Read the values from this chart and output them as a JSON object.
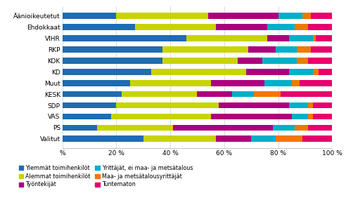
{
  "categories": [
    "Äänioikeutetut",
    "Ehdokkaat",
    "VIHR",
    "RKP",
    "KOK",
    "KD",
    "Muut",
    "KESK",
    "SDP",
    "VAS",
    "PS",
    "Valitut"
  ],
  "series": {
    "Ylemmät toimihenkilöt": [
      20,
      27,
      46,
      37,
      37,
      33,
      25,
      22,
      20,
      18,
      13,
      30
    ],
    "Alemmat toimihenkilöt": [
      34,
      30,
      30,
      32,
      28,
      35,
      30,
      28,
      38,
      37,
      28,
      27
    ],
    "Työntekijät": [
      26,
      19,
      8,
      10,
      9,
      16,
      20,
      13,
      26,
      30,
      37,
      13
    ],
    "Yrittäjät, ei maa- ja metsätalous": [
      9,
      10,
      9,
      8,
      13,
      9,
      10,
      8,
      7,
      6,
      8,
      9
    ],
    "Maa- ja metsätalousyrittäjät": [
      3,
      5,
      1,
      5,
      4,
      2,
      3,
      10,
      2,
      2,
      5,
      10
    ],
    "Tuntematon": [
      8,
      9,
      6,
      8,
      9,
      5,
      12,
      19,
      7,
      7,
      9,
      11
    ]
  },
  "colors": {
    "Ylemmät toimihenkilöt": "#1f6cb0",
    "Alemmat toimihenkilöt": "#c8d400",
    "Työntekijät": "#ad007c",
    "Yrittäjät, ei maa- ja metsätalous": "#00b0c8",
    "Maa- ja metsätalousyrittäjät": "#f07800",
    "Tuntematon": "#e8006c"
  },
  "xlim": [
    0,
    100
  ],
  "xticks": [
    0,
    20,
    40,
    60,
    80,
    100
  ],
  "xticklabels": [
    "%",
    "20 %",
    "40 %",
    "60 %",
    "80 %",
    "100 %"
  ],
  "background_color": "#ffffff",
  "bar_height": 0.55,
  "legend_order": [
    [
      "Ylemmät toimihenkilöt",
      "Alemmat toimihenkilöt"
    ],
    [
      "Työntekijät",
      "Yrittäjät, ei maa- ja metsätalous"
    ],
    [
      "Maa- ja metsätalousyrittäjät",
      "Tuntematon"
    ]
  ]
}
